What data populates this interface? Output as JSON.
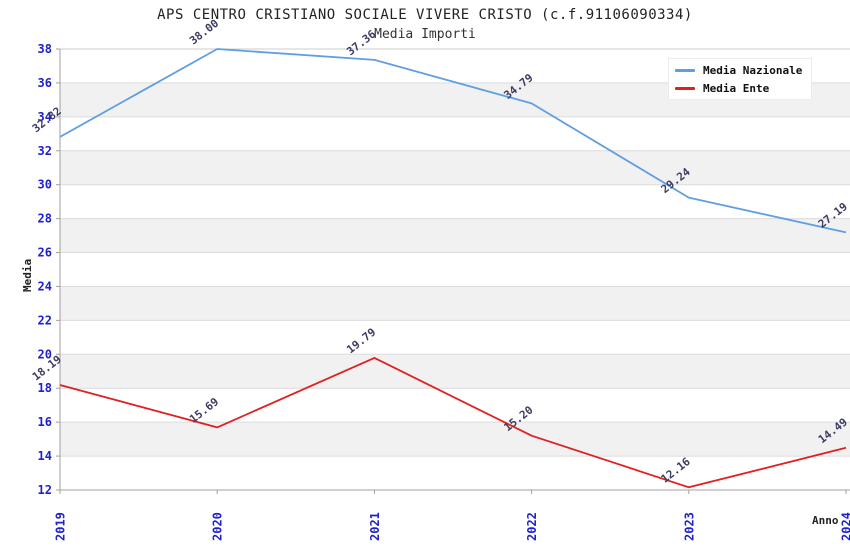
{
  "header": {
    "title": "APS CENTRO CRISTIANO SOCIALE VIVERE CRISTO (c.f.91106090334)",
    "subtitle": "Media Importi"
  },
  "chart_data": {
    "type": "line",
    "title": "APS CENTRO CRISTIANO SOCIALE VIVERE CRISTO (c.f.91106090334)",
    "subtitle": "Media Importi",
    "xlabel": "Anno",
    "ylabel": "Media",
    "categories": [
      "2019",
      "2020",
      "2021",
      "2022",
      "2023",
      "2024"
    ],
    "series": [
      {
        "name": "Media Nazionale",
        "color": "#5f9fdf",
        "values": [
          32.82,
          38.0,
          37.36,
          34.79,
          29.24,
          27.19
        ],
        "labels": [
          "32.82",
          "38.00",
          "37.36",
          "34.79",
          "29.24",
          "27.19"
        ]
      },
      {
        "name": "Media Ente",
        "color": "#e02020",
        "values": [
          18.19,
          15.69,
          19.79,
          15.2,
          12.16,
          14.49
        ],
        "labels": [
          "18.19",
          "15.69",
          "19.79",
          "15.20",
          "12.16",
          "14.49"
        ]
      }
    ],
    "ylim": [
      12,
      38
    ],
    "y_ticks": [
      12,
      14,
      16,
      18,
      20,
      22,
      24,
      26,
      28,
      30,
      32,
      34,
      36,
      38
    ],
    "grid": true,
    "band_fill": "alternating",
    "legend_position": "top-right"
  },
  "style": {
    "tick_label_color": "#2020cc",
    "point_label_color": "#3c3c64",
    "band_gray": "#f1f1f1",
    "gridline_color": "#dcdcdc",
    "axis_color": "#a0a0a0",
    "axis_title_color": "#222222"
  }
}
